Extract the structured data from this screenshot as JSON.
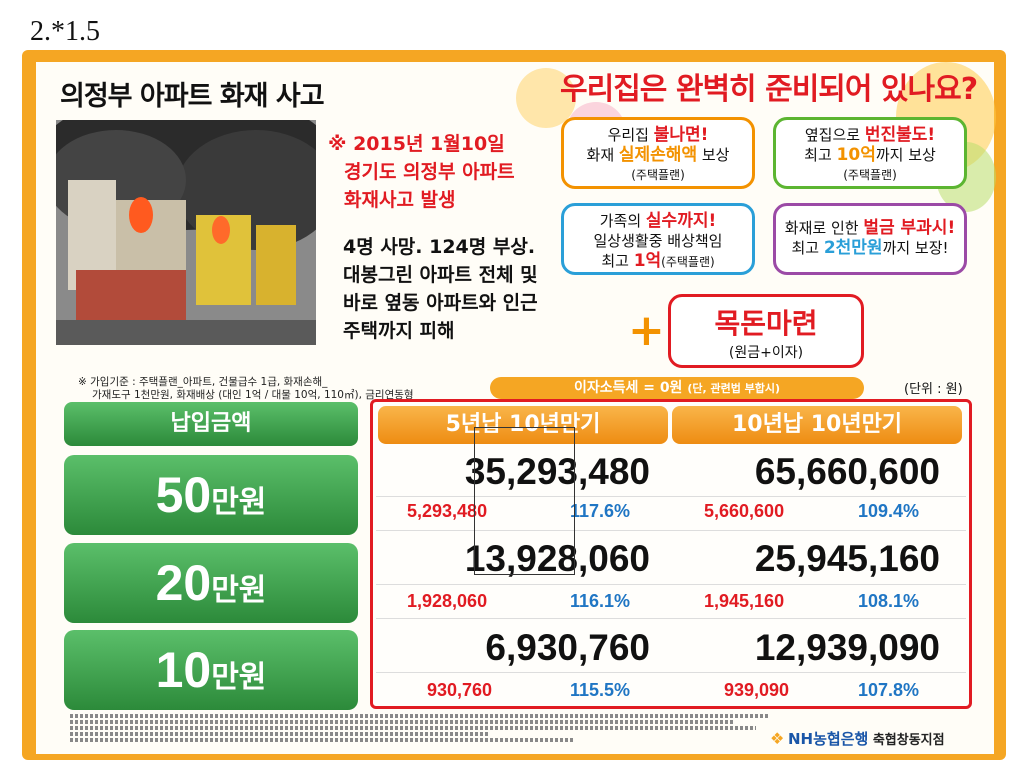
{
  "page_label": "2.*1.5",
  "fire": {
    "title": "의정부 아파트 화재 사고",
    "date_lines": [
      "※ 2015년 1월10일",
      "경기도 의정부 아파트",
      "화재사고 발생"
    ],
    "desc_lines": [
      "4명 사망. 124명 부상.",
      "대봉그린 아파트 전체 및",
      "바로 옆동 아파트와 인근",
      "주택까지 피해"
    ]
  },
  "headline": "우리집은 완벽히 준비되어 있나요?",
  "coverage": [
    {
      "line1_a": "우리집 ",
      "line1_em": "불나면!",
      "line2_a": "화재 ",
      "line2_em": "실제손해액",
      "line2_b": " 보상",
      "line3": "(주택플랜)",
      "color": "#f39200"
    },
    {
      "line1_a": "옆집으로 ",
      "line1_em": "번진불도!",
      "line2_a": "최고 ",
      "line2_em": "10억",
      "line2_b": "까지 보상",
      "line3": "(주택플랜)",
      "color": "#5cb531"
    },
    {
      "line1_a": "가족의 ",
      "line1_em": "실수까지!",
      "line2_a": "일상생활중 배상책임",
      "line2_em": "",
      "line2_b": "",
      "line3_a": "최고 ",
      "line3_em": "1억",
      "line3_b": "(주택플랜)",
      "color": "#2a9fd8"
    },
    {
      "line1_a": "화재로 인한 ",
      "line1_em": "벌금 부과시!",
      "line2_a": "최고 ",
      "line2_em": "2천만원",
      "line2_b": "까지 보장!",
      "line3": "",
      "color": "#9b4aa6"
    }
  ],
  "plus": "+",
  "mokdon": {
    "title": "목돈마련",
    "sub": "(원금+이자)"
  },
  "note_lines": [
    "※ 가입기준 : 주택플랜_아파트, 건물급수 1급, 화재손해_",
    "가재도구 1천만원, 화재배상 (대인 1억 / 대물 10억, 110㎡), 금리연동형"
  ],
  "tax": {
    "main": "이자소득세 = 0원 ",
    "small": "(단, 관련법 부합시)"
  },
  "unit": "(단위 : 원)",
  "table": {
    "row_header": "납입금액",
    "col_headers": [
      "5년납 10년만기",
      "10년납 10년만기"
    ],
    "rows": [
      {
        "amount": "50",
        "won": "만원",
        "cells": [
          {
            "total": "35,293,480",
            "interest": "5,293,480",
            "rate": "117.6%"
          },
          {
            "total": "65,660,600",
            "interest": "5,660,600",
            "rate": "109.4%"
          }
        ]
      },
      {
        "amount": "20",
        "won": "만원",
        "cells": [
          {
            "total": "13,928,060",
            "interest": "1,928,060",
            "rate": "116.1%"
          },
          {
            "total": "25,945,160",
            "interest": "1,945,160",
            "rate": "108.1%"
          }
        ]
      },
      {
        "amount": "10",
        "won": "만원",
        "cells": [
          {
            "total": "6,930,760",
            "interest": "930,760",
            "rate": "115.5%"
          },
          {
            "total": "12,939,090",
            "interest": "939,090",
            "rate": "107.8%"
          }
        ]
      }
    ]
  },
  "bank": {
    "name": "NH농협은행",
    "branch": " 축협창동지점"
  }
}
